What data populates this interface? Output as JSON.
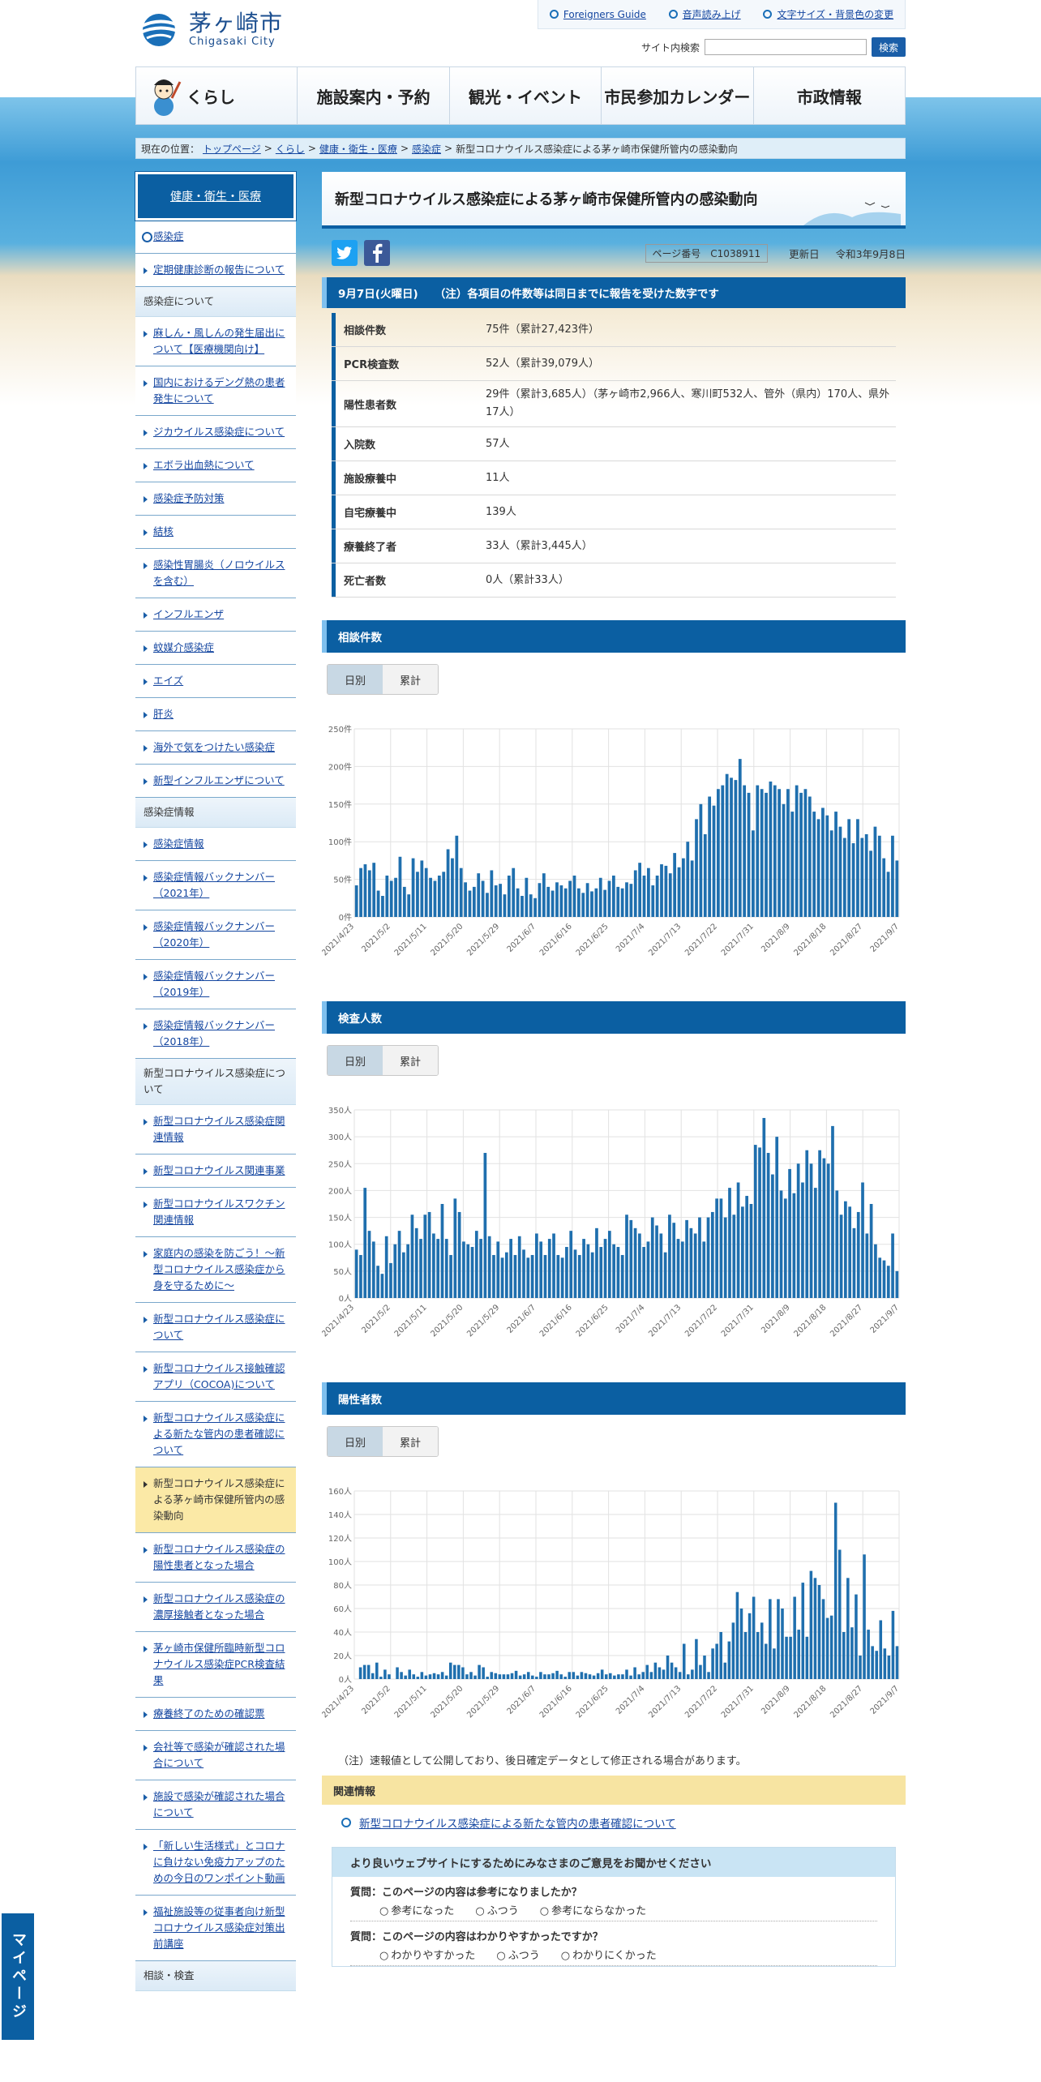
{
  "header": {
    "logo_jp": "茅ヶ崎市",
    "logo_en": "Chigasaki City",
    "util_links": [
      "Foreigners Guide",
      "音声読み上げ",
      "文字サイズ・背景色の変更"
    ],
    "search_label": "サイト内検索",
    "search_button": "検索",
    "nav": [
      "くらし",
      "施設案内・予約",
      "観光・イベント",
      "市民参加カレンダー",
      "市政情報"
    ]
  },
  "breadcrumb": {
    "prefix": "現在の位置：",
    "links": [
      "トップページ",
      "くらし",
      "健康・衛生・医療",
      "感染症"
    ],
    "current": "新型コロナウイルス感染症による茅ヶ崎市保健所管内の感染動向"
  },
  "sidebar": {
    "head": "健康・衛生・医療",
    "groups": [
      {
        "category": "",
        "items": [
          "感染症",
          "定期健康診断の報告について"
        ]
      },
      {
        "category": "感染症について",
        "items": [
          "麻しん・風しんの発生届出について【医療機関向け】",
          "国内におけるデング熱の患者発生について",
          "ジカウイルス感染症について",
          "エボラ出血熱について",
          "感染症予防対策",
          "結核",
          "感染性胃腸炎（ノロウイルスを含む）",
          "インフルエンザ",
          "蚊媒介感染症",
          "エイズ",
          "肝炎",
          "海外で気をつけたい感染症",
          "新型インフルエンザについて"
        ]
      },
      {
        "category": "感染症情報",
        "items": [
          "感染症情報",
          "感染症情報バックナンバー（2021年）",
          "感染症情報バックナンバー（2020年）",
          "感染症情報バックナンバー（2019年）",
          "感染症情報バックナンバー（2018年）"
        ]
      },
      {
        "category": "新型コロナウイルス感染症について",
        "items": [
          "新型コロナウイルス感染症関連情報",
          "新型コロナウイルス関連事業",
          "新型コロナウイルスワクチン関連情報",
          "家庭内の感染を防ごう！～新型コロナウイルス感染症から身を守るために～",
          "新型コロナウイルス感染症について",
          "新型コロナウイルス接触確認アプリ（COCOA)について",
          "新型コロナウイルス感染症による新たな管内の患者確認について",
          "新型コロナウイルス感染症による茅ヶ崎市保健所管内の感染動向",
          "新型コロナウイルス感染症の陽性患者となった場合",
          "新型コロナウイルス感染症の濃厚接触者となった場合",
          "茅ヶ崎市保健所臨時新型コロナウイルス感染症PCR検査結果",
          "療養終了のための確認票",
          "会社等で感染が確認された場合について",
          "施設で感染が確認された場合について",
          "「新しい生活様式」とコロナに負けない免疫力アップのための今日のワンポイント動画",
          "福祉施設等の従事者向け新型コロナウイルス感染症対策出前講座"
        ]
      },
      {
        "category": "相談・検査",
        "items": []
      }
    ],
    "current_item": "新型コロナウイルス感染症による茅ヶ崎市保健所管内の感染動向"
  },
  "main": {
    "title": "新型コロナウイルス感染症による茅ヶ崎市保健所管内の感染動向",
    "page_number": "ページ番号　C1038911",
    "updated_label": "更新日",
    "updated_date": "令和3年9月8日",
    "summary_band": "9月7日(火曜日)　　（注）各項目の件数等は同日までに報告を受けた数字です",
    "stats": [
      {
        "k": "相談件数",
        "v": "75件（累計27,423件）"
      },
      {
        "k": "PCR検査数",
        "v": "52人（累計39,079人）"
      },
      {
        "k": "陽性患者数",
        "v": "29件（累計3,685人）（茅ヶ崎市2,966人、寒川町532人、管外（県内）170人、県外17人）"
      },
      {
        "k": "入院数",
        "v": "57人"
      },
      {
        "k": "施設療養中",
        "v": "11人"
      },
      {
        "k": "自宅療養中",
        "v": "139人"
      },
      {
        "k": "療養終了者",
        "v": "33人（累計3,445人）"
      },
      {
        "k": "死亡者数",
        "v": "0人（累計33人）"
      }
    ],
    "tab_daily": "日別",
    "tab_cumulative": "累計",
    "note": "（注）速報値として公開しており、後日確定データとして修正される場合があります。",
    "related_head": "関連情報",
    "related_link": "新型コロナウイルス感染症による新たな管内の患者確認について",
    "survey_head": "より良いウェブサイトにするためにみなさまのご意見をお聞かせください",
    "q1": "質問：このページの内容は参考になりましたか？",
    "q1_opts": [
      "参考になった",
      "ふつう",
      "参考にならなかった"
    ],
    "q2": "質問：このページの内容はわかりやすかったですか？",
    "q2_opts": [
      "わかりやすかった",
      "ふつう",
      "わかりにくかった"
    ]
  },
  "mypage": "マイページ",
  "colors": {
    "brand": "#0b5fa2",
    "bar": "#1f6fae",
    "accent": "#7fc0ee"
  },
  "chart_data": [
    {
      "type": "bar",
      "title": "相談件数",
      "x_tick_labels": [
        "2021/4/23",
        "2021/5/2",
        "2021/5/11",
        "2021/5/20",
        "2021/5/29",
        "2021/6/7",
        "2021/6/16",
        "2021/6/25",
        "2021/7/4",
        "2021/7/13",
        "2021/7/22",
        "2021/7/31",
        "2021/8/9",
        "2021/8/18",
        "2021/8/27",
        "2021/9/7"
      ],
      "y_ticks": [
        "0件",
        "50件",
        "100件",
        "150件",
        "200件",
        "250件"
      ],
      "ylim": [
        0,
        250
      ],
      "series": [
        {
          "values": [
            42,
            65,
            70,
            62,
            72,
            35,
            28,
            55,
            48,
            52,
            80,
            40,
            30,
            78,
            60,
            75,
            65,
            52,
            48,
            55,
            60,
            90,
            78,
            108,
            65,
            46,
            35,
            40,
            58,
            48,
            32,
            62,
            42,
            44,
            30,
            55,
            65,
            38,
            28,
            52,
            30,
            25,
            45,
            58,
            40,
            35,
            46,
            42,
            38,
            48,
            55,
            38,
            32,
            45,
            34,
            38,
            52,
            36,
            48,
            55,
            40,
            38,
            46,
            44,
            62,
            72,
            55,
            65,
            42,
            55,
            70,
            68,
            58,
            85,
            66,
            78,
            100,
            75,
            130,
            150,
            110,
            160,
            148,
            170,
            175,
            190,
            185,
            182,
            210,
            175,
            165,
            115,
            175,
            170,
            165,
            180,
            175,
            170,
            150,
            170,
            140,
            175,
            165,
            170,
            160,
            140,
            130,
            145,
            135,
            115,
            140,
            120,
            105,
            130,
            98,
            130,
            105,
            110,
            88,
            120,
            108,
            78,
            60,
            108,
            75
          ]
        }
      ],
      "xlabel": "",
      "ylabel": ""
    },
    {
      "type": "bar",
      "title": "検査人数",
      "x_tick_labels": [
        "2021/4/23",
        "2021/5/2",
        "2021/5/11",
        "2021/5/20",
        "2021/5/29",
        "2021/6/7",
        "2021/6/16",
        "2021/6/25",
        "2021/7/4",
        "2021/7/13",
        "2021/7/22",
        "2021/7/31",
        "2021/8/9",
        "2021/8/18",
        "2021/8/27",
        "2021/9/7"
      ],
      "y_ticks": [
        "0人",
        "50人",
        "100人",
        "150人",
        "200人",
        "250人",
        "300人",
        "350人"
      ],
      "ylim": [
        0,
        350
      ],
      "series": [
        {
          "values": [
            90,
            80,
            205,
            125,
            105,
            60,
            45,
            115,
            65,
            100,
            125,
            85,
            100,
            155,
            130,
            110,
            155,
            160,
            120,
            110,
            175,
            110,
            80,
            185,
            160,
            105,
            100,
            95,
            125,
            110,
            270,
            115,
            80,
            105,
            75,
            85,
            110,
            80,
            115,
            90,
            75,
            80,
            120,
            105,
            80,
            110,
            120,
            80,
            75,
            95,
            125,
            90,
            80,
            110,
            100,
            85,
            130,
            95,
            110,
            125,
            100,
            95,
            80,
            155,
            145,
            130,
            120,
            95,
            105,
            150,
            135,
            120,
            85,
            155,
            140,
            110,
            105,
            145,
            130,
            120,
            150,
            105,
            150,
            160,
            185,
            185,
            150,
            205,
            155,
            215,
            170,
            190,
            175,
            285,
            280,
            335,
            270,
            230,
            300,
            200,
            185,
            240,
            195,
            250,
            215,
            275,
            250,
            205,
            275,
            260,
            250,
            320,
            200,
            155,
            180,
            170,
            130,
            160,
            215,
            120,
            175,
            100,
            75,
            70,
            60,
            120,
            50
          ]
        }
      ],
      "xlabel": "",
      "ylabel": ""
    },
    {
      "type": "bar",
      "title": "陽性者数",
      "x_tick_labels": [
        "2021/4/23",
        "2021/5/2",
        "2021/5/11",
        "2021/5/20",
        "2021/5/29",
        "2021/6/7",
        "2021/6/16",
        "2021/6/25",
        "2021/7/4",
        "2021/7/13",
        "2021/7/22",
        "2021/7/31",
        "2021/8/9",
        "2021/8/18",
        "2021/8/27",
        "2021/9/7"
      ],
      "y_ticks": [
        "0人",
        "20人",
        "40人",
        "60人",
        "80人",
        "100人",
        "120人",
        "140人",
        "160人"
      ],
      "ylim": [
        0,
        160
      ],
      "series": [
        {
          "values": [
            0,
            10,
            12,
            12,
            5,
            14,
            2,
            8,
            4,
            0,
            10,
            6,
            3,
            8,
            4,
            2,
            6,
            3,
            4,
            5,
            4,
            6,
            3,
            14,
            12,
            12,
            10,
            4,
            6,
            3,
            12,
            10,
            2,
            6,
            5,
            4,
            4,
            4,
            5,
            7,
            3,
            4,
            6,
            3,
            2,
            6,
            4,
            4,
            5,
            7,
            4,
            2,
            6,
            6,
            3,
            6,
            5,
            4,
            3,
            5,
            8,
            4,
            5,
            3,
            4,
            4,
            8,
            3,
            10,
            4,
            6,
            12,
            6,
            14,
            10,
            8,
            20,
            14,
            10,
            6,
            30,
            4,
            8,
            34,
            12,
            20,
            6,
            26,
            30,
            40,
            14,
            32,
            48,
            74,
            60,
            40,
            56,
            70,
            40,
            48,
            30,
            68,
            26,
            68,
            60,
            36,
            36,
            70,
            42,
            82,
            36,
            92,
            86,
            80,
            68,
            52,
            54,
            150,
            110,
            40,
            86,
            44,
            72,
            20,
            106,
            42,
            28,
            24,
            50,
            26,
            20,
            58,
            28
          ]
        }
      ],
      "xlabel": "",
      "ylabel": ""
    }
  ]
}
